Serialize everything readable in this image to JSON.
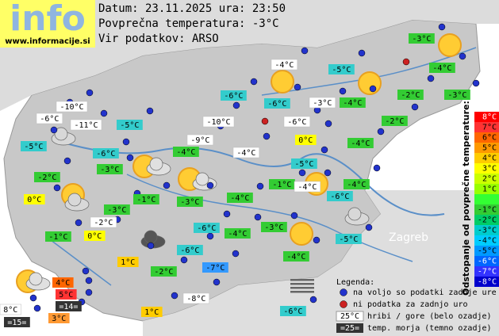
{
  "header": {
    "brand": "info",
    "url": "www.informacije.si",
    "date_line": "Datum: 23.11.2025 ura: 23:50",
    "avg_line": "Povprečna temperatura: -3°C",
    "source_line": "Vir podatkov: ARSO"
  },
  "stations": [
    {
      "text": "-3°C",
      "color": "#33cc33"
    },
    {
      "text": "-4°C",
      "color": "#ffffff"
    },
    {
      "text": "-5°C",
      "color": "#33cccc"
    },
    {
      "text": "-4°C",
      "color": "#33cc33"
    },
    {
      "text": "-6°C",
      "color": "#33cccc"
    },
    {
      "text": "-6°C",
      "color": "#33cccc"
    },
    {
      "text": "-3°C",
      "color": "#ffffff"
    },
    {
      "text": "-4°C",
      "color": "#33cc33"
    },
    {
      "text": "-2°C",
      "color": "#33cc33"
    },
    {
      "text": "-3°C",
      "color": "#33cc33"
    },
    {
      "text": "-10°C",
      "color": "#ffffff"
    },
    {
      "text": "-6°C",
      "color": "#ffffff"
    },
    {
      "text": "-11°C",
      "color": "#ffffff"
    },
    {
      "text": "-5°C",
      "color": "#33cccc"
    },
    {
      "text": "-10°C",
      "color": "#ffffff"
    },
    {
      "text": "-6°C",
      "color": "#ffffff"
    },
    {
      "text": "-2°C",
      "color": "#33cc33"
    },
    {
      "text": "-5°C",
      "color": "#33cccc"
    },
    {
      "text": "-6°C",
      "color": "#33cccc"
    },
    {
      "text": "-9°C",
      "color": "#ffffff"
    },
    {
      "text": "0°C",
      "color": "#ffff00"
    },
    {
      "text": "-4°C",
      "color": "#33cc33"
    },
    {
      "text": "-4°C",
      "color": "#33cc33"
    },
    {
      "text": "-4°C",
      "color": "#ffffff"
    },
    {
      "text": "-3°C",
      "color": "#33cc33"
    },
    {
      "text": "-5°C",
      "color": "#33cccc"
    },
    {
      "text": "-2°C",
      "color": "#33cc33"
    },
    {
      "text": "-1°C",
      "color": "#33cc33"
    },
    {
      "text": "-4°C",
      "color": "#ffffff"
    },
    {
      "text": "-4°C",
      "color": "#33cc33"
    },
    {
      "text": "0°C",
      "color": "#ffff00"
    },
    {
      "text": "-1°C",
      "color": "#33cc33"
    },
    {
      "text": "-3°C",
      "color": "#33cc33"
    },
    {
      "text": "-4°C",
      "color": "#33cc33"
    },
    {
      "text": "-6°C",
      "color": "#33cccc"
    },
    {
      "text": "-3°C",
      "color": "#33cc33"
    },
    {
      "text": "-2°C",
      "color": "#ffffff"
    },
    {
      "text": "-6°C",
      "color": "#33cccc"
    },
    {
      "text": "-4°C",
      "color": "#33cc33"
    },
    {
      "text": "-3°C",
      "color": "#33cc33"
    },
    {
      "text": "-1°C",
      "color": "#33cc33"
    },
    {
      "text": "0°C",
      "color": "#ffff00"
    },
    {
      "text": "-5°C",
      "color": "#33cccc"
    },
    {
      "text": "-6°C",
      "color": "#33cccc"
    },
    {
      "text": "1°C",
      "color": "#ffcc00"
    },
    {
      "text": "-2°C",
      "color": "#33cc33"
    },
    {
      "text": "-7°C",
      "color": "#3399ff"
    },
    {
      "text": "-4°C",
      "color": "#33cc33"
    },
    {
      "text": "4°C",
      "color": "#ff6600"
    },
    {
      "text": "5°C",
      "color": "#ff3333"
    },
    {
      "text": "-8°C",
      "color": "#ffffff"
    },
    {
      "text": "8°C",
      "color": "#ffffff"
    },
    {
      "text": "=14=",
      "color": "#333333"
    },
    {
      "text": "1°C",
      "color": "#ffcc00"
    },
    {
      "text": "-6°C",
      "color": "#33cccc"
    },
    {
      "text": "=15=",
      "color": "#333333"
    },
    {
      "text": "3°C",
      "color": "#ff9933"
    }
  ],
  "legend": {
    "title": "Legenda:",
    "available": "na voljo so podatki zadnje ure",
    "missing": "ni podatka za zadnjo uro",
    "hill_sample": "25°C",
    "hill_text": "hribi / gore (belo ozadje)",
    "sea_sample": "=25=",
    "sea_text": "temp. morja (temno ozadje)"
  },
  "scale": {
    "title": "Odstopanje od povprečne temperature:",
    "labels": [
      "8°C",
      "7°C",
      "6°C",
      "5°C",
      "4°C",
      "3°C",
      "2°C",
      "1°C",
      null,
      "-1°C",
      "-2°C",
      "-3°C",
      "-4°C",
      "-5°C",
      "-6°C",
      "-7°C",
      "-8°C"
    ],
    "colors": [
      "#ff0000",
      "#ff3333",
      "#ff6600",
      "#ff9900",
      "#ffcc00",
      "#ffff00",
      "#ccff00",
      "#99ff00",
      "#33ff33",
      "#33cc33",
      "#00cc66",
      "#00cccc",
      "#00ccff",
      "#0099ff",
      "#0066ff",
      "#3333ff",
      "#0000cc"
    ]
  }
}
